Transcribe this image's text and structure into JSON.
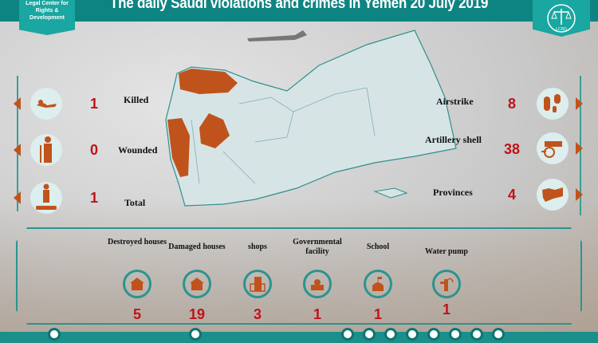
{
  "header": {
    "title": "The daily Saudi violations and crimes in Yemen 20 July 2019",
    "logo_text": "Legal Center for Rights & Development",
    "seal_text": "LCRD"
  },
  "casualties": [
    {
      "label": "Killed",
      "value": "1",
      "icon": "killed-person-icon"
    },
    {
      "label": "Wounded",
      "value": "0",
      "icon": "wounded-person-icon"
    },
    {
      "label": "Total",
      "value": "1",
      "icon": "casualties-total-icon"
    }
  ],
  "attacks": [
    {
      "label": "Airstrike",
      "value": "8",
      "icon": "bombs-icon"
    },
    {
      "label": "Artillery shell",
      "value": "38",
      "icon": "cannon-icon"
    },
    {
      "label": "Provinces",
      "value": "4",
      "icon": "yemen-map-icon"
    }
  ],
  "damages": [
    {
      "label": "Destroyed houses",
      "value": "5",
      "icon": "destroyed-house-icon"
    },
    {
      "label": "Damaged houses",
      "value": "19",
      "icon": "damaged-house-icon"
    },
    {
      "label": "shops",
      "value": "3",
      "icon": "shop-building-icon"
    },
    {
      "label": "Governmental facility",
      "value": "1",
      "icon": "government-building-icon"
    },
    {
      "label": "School",
      "value": "1",
      "icon": "school-icon"
    },
    {
      "label": "Water pump",
      "value": "1",
      "icon": "water-pump-icon"
    }
  ],
  "colors": {
    "teal": "#0e8482",
    "accent": "#c0531c",
    "number": "#c0121b"
  }
}
